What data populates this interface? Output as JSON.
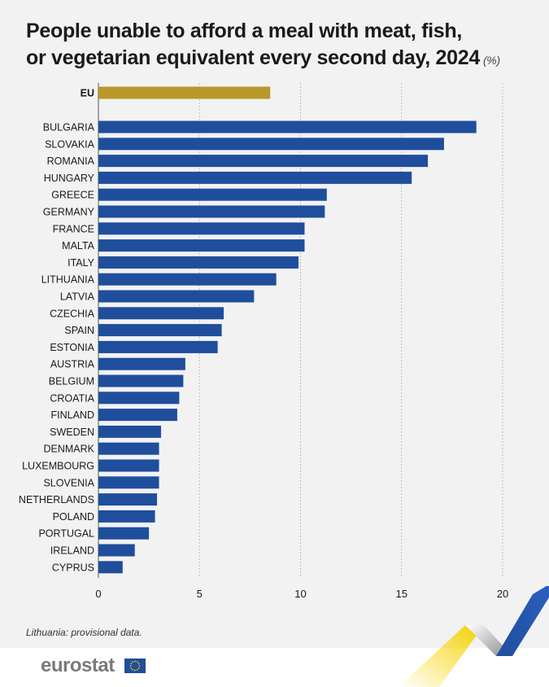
{
  "title": {
    "line1": "People unable to afford a meal with meat, fish,",
    "line2": "or vegetarian equivalent every second day, 2024",
    "unit": "(%)"
  },
  "note": "Lithuania: provisional data.",
  "brand": {
    "name": "eurostat"
  },
  "colors": {
    "eu_bar": "#b8982a",
    "country_bar": "#1f4e9c",
    "grid": "#b0b0b0",
    "panel": "#f2f2f2"
  },
  "chart_data": {
    "type": "bar",
    "orientation": "horizontal",
    "categories": [
      "EU",
      "BULGARIA",
      "SLOVAKIA",
      "ROMANIA",
      "HUNGARY",
      "GREECE",
      "GERMANY",
      "FRANCE",
      "MALTA",
      "ITALY",
      "LITHUANIA",
      "LATVIA",
      "CZECHIA",
      "SPAIN",
      "ESTONIA",
      "AUSTRIA",
      "BELGIUM",
      "CROATIA",
      "FINLAND",
      "SWEDEN",
      "DENMARK",
      "LUXEMBOURG",
      "SLOVENIA",
      "NETHERLANDS",
      "POLAND",
      "PORTUGAL",
      "IRELAND",
      "CYPRUS"
    ],
    "values": [
      8.5,
      18.7,
      17.1,
      16.3,
      15.5,
      11.3,
      11.2,
      10.2,
      10.2,
      9.9,
      8.8,
      7.7,
      6.2,
      6.1,
      5.9,
      4.3,
      4.2,
      4.0,
      3.9,
      3.1,
      3.0,
      3.0,
      3.0,
      2.9,
      2.8,
      2.5,
      1.8,
      1.2
    ],
    "xlim": [
      0,
      20
    ],
    "xticks": [
      0,
      5,
      10,
      15,
      20
    ],
    "grid": true
  }
}
